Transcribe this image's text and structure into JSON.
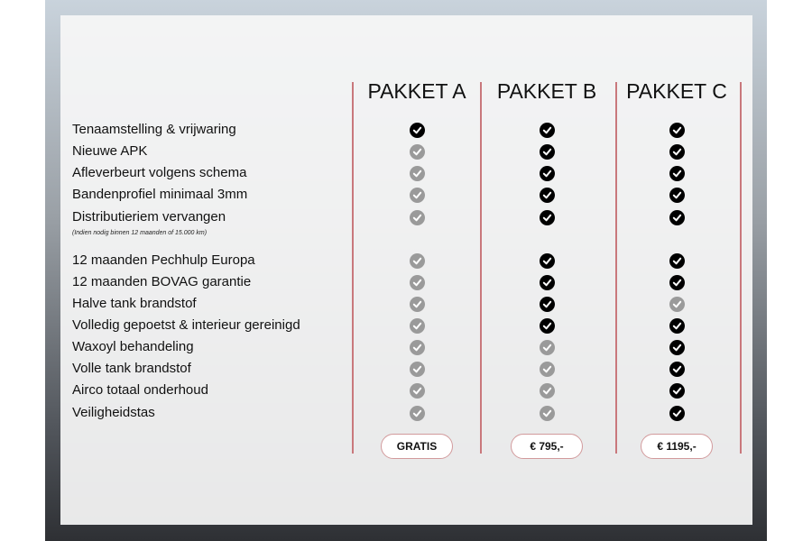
{
  "packages": [
    {
      "name": "PAKKET A",
      "price": "GRATIS"
    },
    {
      "name": "PAKKET B",
      "price": "€ 795,-"
    },
    {
      "name": "PAKKET C",
      "price": "€ 1195,-"
    }
  ],
  "note": "(Indien nodig binnen 12 maanden of 15.000 km)",
  "colors": {
    "included": "#000000",
    "not_included": "#9a9a9a",
    "accent": "#c9787c"
  },
  "rows": [
    {
      "label": "Tenaamstelling & vrijwaring",
      "included": [
        true,
        true,
        true
      ]
    },
    {
      "label": "Nieuwe APK",
      "included": [
        false,
        true,
        true
      ]
    },
    {
      "label": "Afleverbeurt volgens schema",
      "included": [
        false,
        true,
        true
      ]
    },
    {
      "label": "Bandenprofiel minimaal 3mm",
      "included": [
        false,
        true,
        true
      ]
    },
    {
      "label": "Distributieriem vervangen",
      "included": [
        false,
        true,
        true
      ]
    },
    {
      "label": "12 maanden Pechhulp Europa",
      "included": [
        false,
        true,
        true
      ]
    },
    {
      "label": "12 maanden BOVAG garantie",
      "included": [
        false,
        true,
        true
      ]
    },
    {
      "label": "Halve tank brandstof",
      "included": [
        false,
        true,
        false
      ]
    },
    {
      "label": "Volledig gepoetst & interieur gereinigd",
      "included": [
        false,
        true,
        true
      ]
    },
    {
      "label": "Waxoyl behandeling",
      "included": [
        false,
        false,
        true
      ]
    },
    {
      "label": "Volle tank brandstof",
      "included": [
        false,
        false,
        true
      ]
    },
    {
      "label": "Airco totaal onderhoud",
      "included": [
        false,
        false,
        true
      ]
    },
    {
      "label": "Veiligheidstas",
      "included": [
        false,
        false,
        true
      ]
    }
  ]
}
